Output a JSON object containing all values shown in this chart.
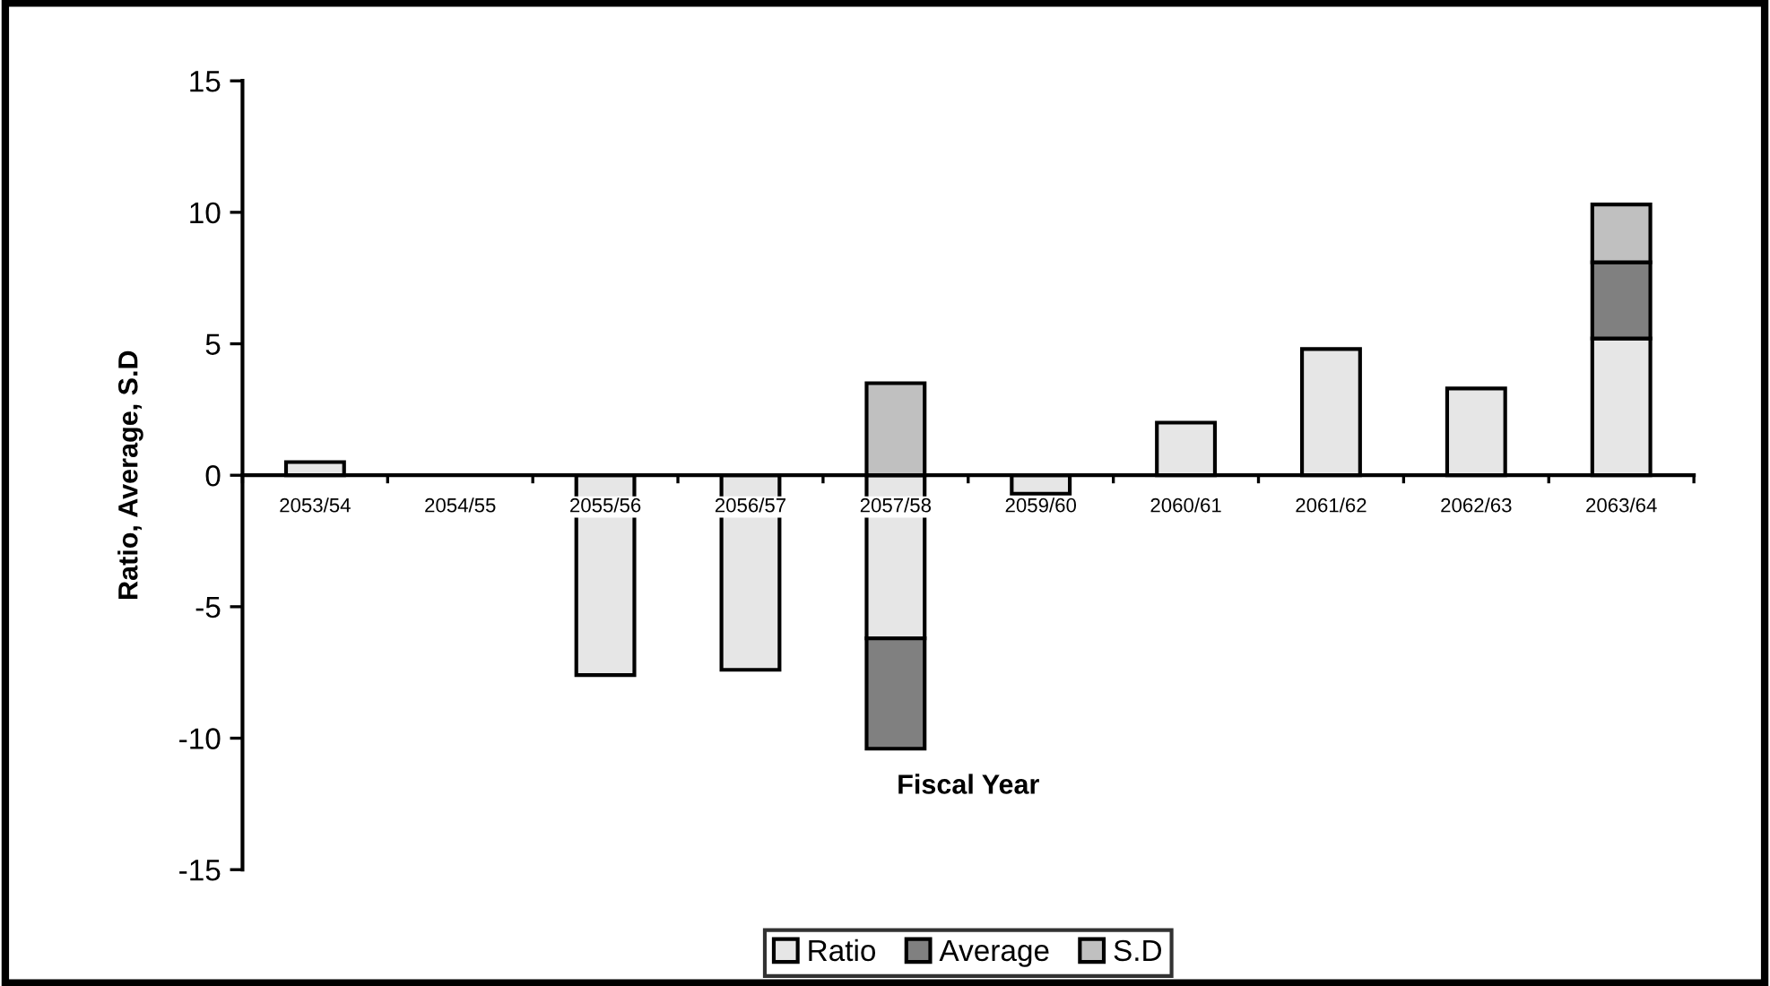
{
  "chart_data": {
    "type": "bar",
    "stacked": true,
    "xlabel": "Fiscal Year",
    "ylabel": "Ratio, Average, S.D",
    "categories": [
      "2053/54",
      "2054/55",
      "2055/56",
      "2056/57",
      "2057/58",
      "2059/60",
      "2060/61",
      "2061/62",
      "2062/63",
      "2063/64"
    ],
    "series": [
      {
        "name": "Ratio",
        "color": "#e6e6e6",
        "values": [
          0.5,
          null,
          -7.6,
          -7.4,
          -6.2,
          -0.7,
          2.0,
          4.8,
          3.3,
          5.2
        ]
      },
      {
        "name": "Average",
        "color": "#808080",
        "values": [
          null,
          null,
          null,
          null,
          -4.2,
          null,
          null,
          null,
          null,
          2.9
        ]
      },
      {
        "name": "S.D",
        "color": "#c0c0c0",
        "values": [
          null,
          null,
          null,
          null,
          3.5,
          null,
          null,
          null,
          null,
          2.2
        ]
      }
    ],
    "ylim": [
      -15,
      15
    ],
    "yticks": [
      -15,
      -10,
      -5,
      0,
      5,
      10,
      15
    ],
    "grid": false,
    "legend": "bottom"
  }
}
